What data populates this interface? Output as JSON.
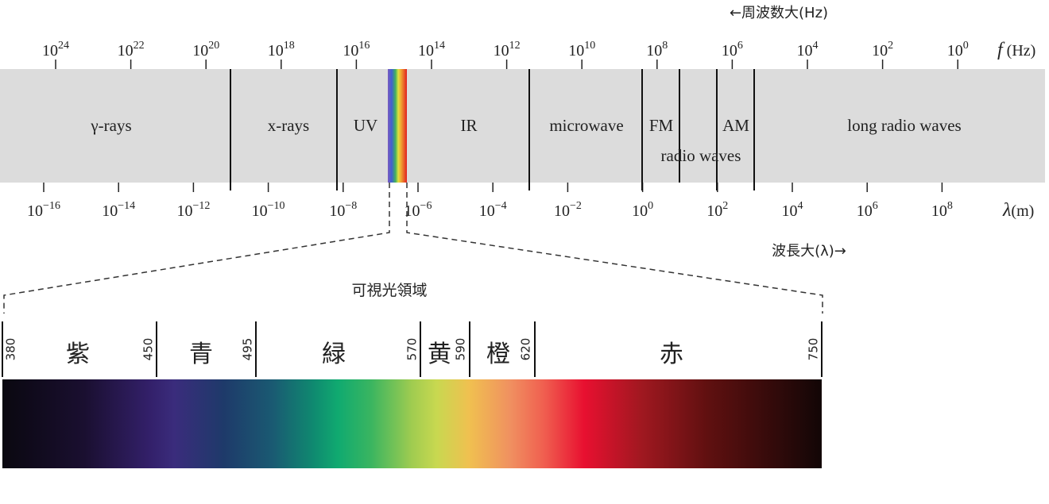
{
  "frequency_axis": {
    "direction_label": "←周波数大(Hz)",
    "ticks": [
      {
        "base": "10",
        "exp": "24"
      },
      {
        "base": "10",
        "exp": "22"
      },
      {
        "base": "10",
        "exp": "20"
      },
      {
        "base": "10",
        "exp": "18"
      },
      {
        "base": "10",
        "exp": "16"
      },
      {
        "base": "10",
        "exp": "14"
      },
      {
        "base": "10",
        "exp": "12"
      },
      {
        "base": "10",
        "exp": "10"
      },
      {
        "base": "10",
        "exp": "8"
      },
      {
        "base": "10",
        "exp": "6"
      },
      {
        "base": "10",
        "exp": "4"
      },
      {
        "base": "10",
        "exp": "2"
      },
      {
        "base": "10",
        "exp": "0"
      }
    ],
    "symbol": "f",
    "unit": "(Hz)"
  },
  "bands": [
    "γ-rays",
    "x-rays",
    "UV",
    "IR",
    "microwave",
    "FM",
    "AM",
    "radio waves",
    "long radio waves"
  ],
  "wavelength_axis": {
    "direction_label": "波長大(λ)→",
    "ticks": [
      {
        "base": "10",
        "exp": "−16"
      },
      {
        "base": "10",
        "exp": "−14"
      },
      {
        "base": "10",
        "exp": "−12"
      },
      {
        "base": "10",
        "exp": "−10"
      },
      {
        "base": "10",
        "exp": "−8"
      },
      {
        "base": "10",
        "exp": "−6"
      },
      {
        "base": "10",
        "exp": "−4"
      },
      {
        "base": "10",
        "exp": "−2"
      },
      {
        "base": "10",
        "exp": "0"
      },
      {
        "base": "10",
        "exp": "2"
      },
      {
        "base": "10",
        "exp": "4"
      },
      {
        "base": "10",
        "exp": "6"
      },
      {
        "base": "10",
        "exp": "8"
      }
    ],
    "symbol": "λ",
    "unit": "(m)"
  },
  "visible": {
    "title": "可視光領域",
    "boundaries": [
      380,
      450,
      495,
      570,
      590,
      620,
      750
    ],
    "colors": [
      "紫",
      "青",
      "緑",
      "黄",
      "橙",
      "赤"
    ]
  }
}
